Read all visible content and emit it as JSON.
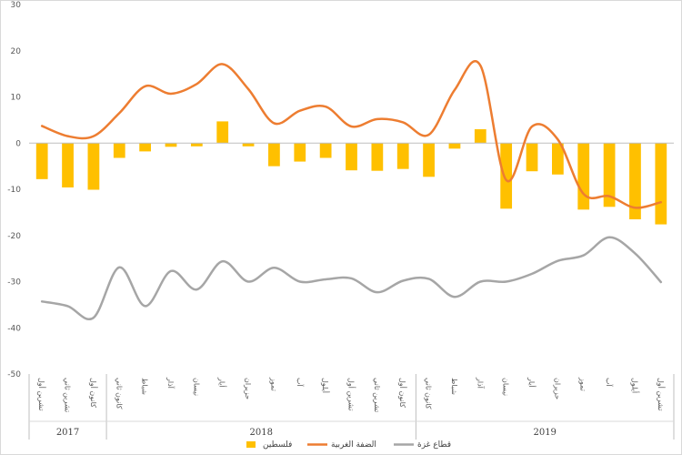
{
  "chart_data": {
    "type": "bar",
    "title": "",
    "xlabel": "",
    "ylabel": "",
    "ylim": [
      -50,
      30
    ],
    "yticks": [
      30,
      20,
      10,
      0,
      -10,
      -20,
      -30,
      -40,
      -50
    ],
    "grid": false,
    "legend_position": "bottom",
    "categories": [
      "تشرين أول",
      "تشرين ثاني",
      "كانون أول",
      "كانون ثاني",
      "شباط",
      "آذار",
      "نيسان",
      "أيار",
      "حزيران",
      "تموز",
      "آب",
      "أيلول",
      "تشرين أول",
      "تشرين ثاني",
      "كانون أول",
      "كانون ثاني",
      "شباط",
      "آذار",
      "نيسان",
      "أيار",
      "حزيران",
      "تموز",
      "آب",
      "أيلول",
      "تشرين أول"
    ],
    "year_groups": [
      {
        "label": "2017",
        "count": 3
      },
      {
        "label": "2018",
        "count": 12
      },
      {
        "label": "2019",
        "count": 10
      }
    ],
    "series": [
      {
        "name": "فلسطين",
        "kind": "bar",
        "color": "#ffc000",
        "values": [
          -7.8,
          -9.6,
          -10.1,
          -3.2,
          -1.8,
          -0.8,
          -0.7,
          4.7,
          -0.7,
          -5.0,
          -4.0,
          -3.2,
          -5.9,
          -6.0,
          -5.6,
          -7.3,
          -1.2,
          3.0,
          -14.2,
          -6.1,
          -6.8,
          -14.4,
          -13.8,
          -16.5,
          -17.6
        ]
      },
      {
        "name": "الضفة الغربية",
        "kind": "line",
        "color": "#ed7d31",
        "values": [
          3.7,
          1.5,
          1.5,
          6.5,
          12.3,
          10.7,
          12.8,
          17.1,
          11.7,
          4.3,
          7.0,
          7.9,
          3.6,
          5.2,
          4.5,
          1.8,
          11.5,
          16.8,
          -8.0,
          3.6,
          0.8,
          -11.0,
          -11.5,
          -14.0,
          -12.8
        ]
      },
      {
        "name": "قطاع غزة",
        "kind": "line",
        "color": "#a6a6a6",
        "values": [
          -34.3,
          -35.3,
          -37.8,
          -26.9,
          -35.3,
          -27.7,
          -31.7,
          -25.6,
          -30.0,
          -27.0,
          -30.0,
          -29.5,
          -29.3,
          -32.3,
          -29.8,
          -29.4,
          -33.3,
          -30.0,
          -30.0,
          -28.3,
          -25.5,
          -24.3,
          -20.4,
          -23.9,
          -30.1
        ]
      }
    ]
  }
}
